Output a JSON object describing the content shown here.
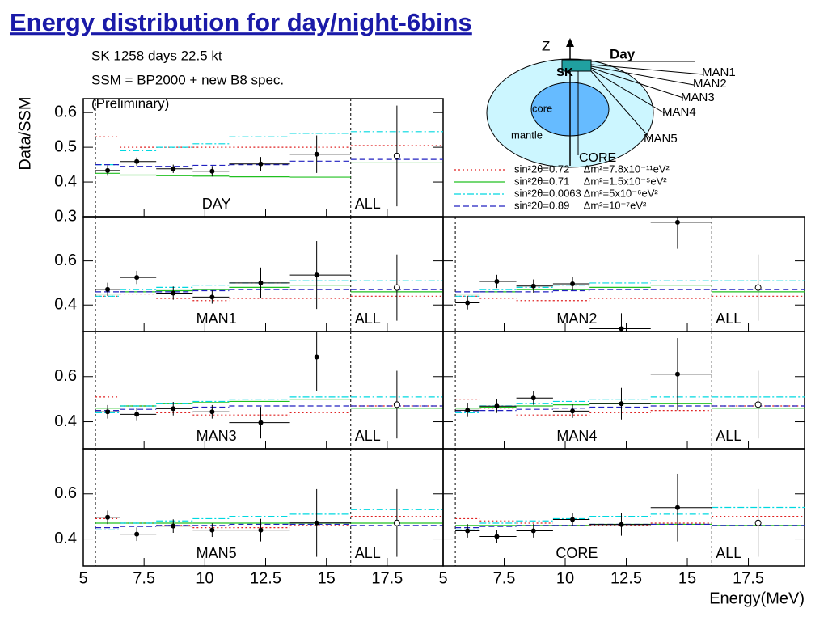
{
  "title": "Energy distribution for day/night-6bins",
  "info": [
    "SK 1258 days  22.5 kt",
    "SSM = BP2000 + new B8 spec.",
    "(Preliminary)"
  ],
  "y_label": "Data/SSM",
  "x_label": "Energy(MeV)",
  "diagram": {
    "z": "Z",
    "day": "Day",
    "sk": "SK",
    "core": "core",
    "mantle": "mantle",
    "core_upper": "CORE",
    "man": [
      "MAN1",
      "MAN2",
      "MAN3",
      "MAN4",
      "MAN5"
    ]
  },
  "chart_data": [
    {
      "type": "errorbar",
      "label": "DAY",
      "all_label": "ALL",
      "xlim": [
        5,
        19.8
      ],
      "xticks": [
        5,
        7.5,
        10,
        12.5,
        15,
        17.5
      ],
      "ylim": [
        0.3,
        0.64
      ],
      "yticks": [
        0.3,
        0.4,
        0.5,
        0.6
      ],
      "bins": [
        5.5,
        6.5,
        8,
        9.5,
        11,
        13.5,
        16
      ],
      "x": [
        6.0,
        7.2,
        8.7,
        10.3,
        12.3,
        14.6
      ],
      "values": [
        0.433,
        0.459,
        0.438,
        0.431,
        0.452,
        0.48
      ],
      "errors": [
        0.015,
        0.012,
        0.012,
        0.015,
        0.02,
        0.054
      ],
      "all_x": 17.9,
      "all_value": 0.475,
      "all_error": 0.145,
      "series": [
        {
          "name": "sin²2θ=0.72     Δm²=7.8x10⁻¹¹eV²",
          "color": "#e02020",
          "style": "dotted",
          "values": [
            0.53,
            0.5,
            0.5,
            0.5,
            0.5,
            0.5
          ],
          "all_value": 0.505
        },
        {
          "name": "sin²2θ=0.71     Δm²=1.5x10⁻⁵eV²",
          "color": "#20c020",
          "style": "solid",
          "values": [
            0.425,
            0.42,
            0.418,
            0.417,
            0.415,
            0.414
          ],
          "all_value": 0.455
        },
        {
          "name": "sin²2θ=0.0063 Δm²=5x10⁻⁶eV²",
          "color": "#00d8e0",
          "style": "dashdot",
          "values": [
            0.45,
            0.49,
            0.5,
            0.51,
            0.53,
            0.54
          ],
          "all_value": 0.545
        },
        {
          "name": "sin²2θ=0.89     Δm²=10⁻⁷eV²",
          "color": "#2020c0",
          "style": "dashed",
          "values": [
            0.45,
            0.445,
            0.445,
            0.448,
            0.45,
            0.46
          ],
          "all_value": 0.465
        }
      ]
    },
    {
      "type": "errorbar",
      "label": "MAN1",
      "all_label": "ALL",
      "xlim": [
        5,
        19.8
      ],
      "xticks": [
        5,
        7.5,
        10,
        12.5,
        15,
        17.5
      ],
      "ylim": [
        0.28,
        0.8
      ],
      "yticks": [
        0.4,
        0.6
      ],
      "bins": [
        5.5,
        6.5,
        8,
        9.5,
        11,
        13.5,
        16
      ],
      "x": [
        6.0,
        7.2,
        8.7,
        10.3,
        12.3,
        14.6
      ],
      "values": [
        0.471,
        0.525,
        0.454,
        0.436,
        0.5,
        0.536
      ],
      "errors": [
        0.03,
        0.03,
        0.03,
        0.03,
        0.07,
        0.154
      ],
      "all_x": 17.9,
      "all_value": 0.479,
      "all_error": 0.15,
      "series": [
        {
          "color": "#e02020",
          "style": "dotted",
          "values": [
            0.44,
            0.45,
            0.43,
            0.42,
            0.43,
            0.43
          ],
          "all_value": 0.44
        },
        {
          "color": "#20c020",
          "style": "solid",
          "values": [
            0.45,
            0.46,
            0.465,
            0.47,
            0.48,
            0.49
          ],
          "all_value": 0.46
        },
        {
          "color": "#00d8e0",
          "style": "dashdot",
          "values": [
            0.44,
            0.47,
            0.48,
            0.49,
            0.5,
            0.51
          ],
          "all_value": 0.51
        },
        {
          "color": "#2020c0",
          "style": "dashed",
          "values": [
            0.46,
            0.46,
            0.46,
            0.465,
            0.47,
            0.47
          ],
          "all_value": 0.47
        }
      ]
    },
    {
      "type": "errorbar",
      "label": "MAN2",
      "all_label": "ALL",
      "xlim": [
        5,
        19.8
      ],
      "xticks": [
        5,
        7.5,
        10,
        12.5,
        15,
        17.5
      ],
      "ylim": [
        0.28,
        0.8
      ],
      "yticks": [
        0.4,
        0.6
      ],
      "bins": [
        5.5,
        6.5,
        8,
        9.5,
        11,
        13.5,
        16
      ],
      "x": [
        6.0,
        7.2,
        8.7,
        10.3,
        12.3,
        14.6
      ],
      "values": [
        0.41,
        0.507,
        0.486,
        0.496,
        0.293,
        0.775
      ],
      "errors": [
        0.03,
        0.03,
        0.03,
        0.03,
        0.07,
        0.12
      ],
      "all_x": 17.9,
      "all_value": 0.479,
      "all_error": 0.15,
      "series": [
        {
          "color": "#e02020",
          "style": "dotted",
          "values": [
            0.44,
            0.43,
            0.42,
            0.42,
            0.43,
            0.43
          ],
          "all_value": 0.44
        },
        {
          "color": "#20c020",
          "style": "solid",
          "values": [
            0.45,
            0.46,
            0.47,
            0.47,
            0.48,
            0.49
          ],
          "all_value": 0.46
        },
        {
          "color": "#00d8e0",
          "style": "dashdot",
          "values": [
            0.44,
            0.47,
            0.48,
            0.49,
            0.5,
            0.51
          ],
          "all_value": 0.51
        },
        {
          "color": "#2020c0",
          "style": "dashed",
          "values": [
            0.46,
            0.46,
            0.46,
            0.465,
            0.47,
            0.47
          ],
          "all_value": 0.47
        }
      ]
    },
    {
      "type": "errorbar",
      "label": "MAN3",
      "all_label": "ALL",
      "xlim": [
        5,
        19.8
      ],
      "xticks": [
        5,
        7.5,
        10,
        12.5,
        15,
        17.5
      ],
      "ylim": [
        0.28,
        0.8
      ],
      "yticks": [
        0.4,
        0.6
      ],
      "bins": [
        5.5,
        6.5,
        8,
        9.5,
        11,
        13.5,
        16
      ],
      "x": [
        6.0,
        7.2,
        8.7,
        10.3,
        12.3,
        14.6
      ],
      "values": [
        0.444,
        0.433,
        0.458,
        0.444,
        0.396,
        0.687
      ],
      "errors": [
        0.03,
        0.03,
        0.03,
        0.03,
        0.07,
        0.15
      ],
      "all_x": 17.9,
      "all_value": 0.476,
      "all_error": 0.15,
      "series": [
        {
          "color": "#e02020",
          "style": "dotted",
          "values": [
            0.51,
            0.47,
            0.44,
            0.43,
            0.43,
            0.44
          ],
          "all_value": 0.47
        },
        {
          "color": "#20c020",
          "style": "solid",
          "values": [
            0.46,
            0.47,
            0.48,
            0.485,
            0.49,
            0.5
          ],
          "all_value": 0.46
        },
        {
          "color": "#00d8e0",
          "style": "dashdot",
          "values": [
            0.44,
            0.47,
            0.48,
            0.49,
            0.5,
            0.51
          ],
          "all_value": 0.51
        },
        {
          "color": "#2020c0",
          "style": "dashed",
          "values": [
            0.45,
            0.455,
            0.46,
            0.465,
            0.47,
            0.47
          ],
          "all_value": 0.47
        }
      ]
    },
    {
      "type": "errorbar",
      "label": "MAN4",
      "all_label": "ALL",
      "xlim": [
        5,
        19.8
      ],
      "xticks": [
        5,
        7.5,
        10,
        12.5,
        15,
        17.5
      ],
      "ylim": [
        0.28,
        0.8
      ],
      "yticks": [
        0.4,
        0.6
      ],
      "bins": [
        5.5,
        6.5,
        8,
        9.5,
        11,
        13.5,
        16
      ],
      "x": [
        6.0,
        7.2,
        8.7,
        10.3,
        12.3,
        14.6
      ],
      "values": [
        0.451,
        0.469,
        0.505,
        0.447,
        0.48,
        0.611
      ],
      "errors": [
        0.03,
        0.03,
        0.03,
        0.03,
        0.07,
        0.16
      ],
      "all_x": 17.9,
      "all_value": 0.476,
      "all_error": 0.15,
      "series": [
        {
          "color": "#e02020",
          "style": "dotted",
          "values": [
            0.5,
            0.46,
            0.43,
            0.43,
            0.44,
            0.45
          ],
          "all_value": 0.47
        },
        {
          "color": "#20c020",
          "style": "solid",
          "values": [
            0.46,
            0.465,
            0.47,
            0.475,
            0.48,
            0.48
          ],
          "all_value": 0.46
        },
        {
          "color": "#00d8e0",
          "style": "dashdot",
          "values": [
            0.44,
            0.47,
            0.48,
            0.49,
            0.5,
            0.51
          ],
          "all_value": 0.51
        },
        {
          "color": "#2020c0",
          "style": "dashed",
          "values": [
            0.445,
            0.45,
            0.455,
            0.46,
            0.465,
            0.47
          ],
          "all_value": 0.47
        }
      ]
    },
    {
      "type": "errorbar",
      "label": "MAN5",
      "all_label": "ALL",
      "xlim": [
        5,
        19.8
      ],
      "xticks": [
        5,
        7.5,
        10,
        12.5,
        15,
        17.5
      ],
      "ylim": [
        0.28,
        0.8
      ],
      "yticks": [
        0.4,
        0.6
      ],
      "bins": [
        5.5,
        6.5,
        8,
        9.5,
        11,
        13.5,
        16
      ],
      "x": [
        6.0,
        7.2,
        8.7,
        10.3,
        12.3,
        14.6
      ],
      "values": [
        0.496,
        0.421,
        0.457,
        0.439,
        0.439,
        0.471
      ],
      "errors": [
        0.03,
        0.03,
        0.03,
        0.03,
        0.05,
        0.15
      ],
      "all_x": 17.9,
      "all_value": 0.471,
      "all_error": 0.15,
      "series": [
        {
          "color": "#e02020",
          "style": "dotted",
          "values": [
            0.49,
            0.47,
            0.46,
            0.45,
            0.45,
            0.46
          ],
          "all_value": 0.5
        },
        {
          "color": "#20c020",
          "style": "solid",
          "values": [
            0.47,
            0.47,
            0.47,
            0.47,
            0.47,
            0.47
          ],
          "all_value": 0.47
        },
        {
          "color": "#00d8e0",
          "style": "dashdot",
          "values": [
            0.44,
            0.47,
            0.48,
            0.49,
            0.5,
            0.51
          ],
          "all_value": 0.53
        },
        {
          "color": "#2020c0",
          "style": "dashed",
          "values": [
            0.45,
            0.455,
            0.46,
            0.46,
            0.465,
            0.465
          ],
          "all_value": 0.46
        }
      ]
    },
    {
      "type": "errorbar",
      "label": "CORE",
      "all_label": "ALL",
      "xlim": [
        5,
        19.8
      ],
      "xticks": [
        5,
        7.5,
        10,
        12.5,
        15,
        17.5
      ],
      "ylim": [
        0.28,
        0.8
      ],
      "yticks": [
        0.4,
        0.6
      ],
      "bins": [
        5.5,
        6.5,
        8,
        9.5,
        11,
        13.5,
        16
      ],
      "x": [
        6.0,
        7.2,
        8.7,
        10.3,
        12.3,
        14.6
      ],
      "values": [
        0.436,
        0.411,
        0.436,
        0.486,
        0.464,
        0.539
      ],
      "errors": [
        0.03,
        0.03,
        0.03,
        0.03,
        0.05,
        0.15
      ],
      "all_x": 17.9,
      "all_value": 0.471,
      "all_error": 0.15,
      "series": [
        {
          "color": "#e02020",
          "style": "dotted",
          "values": [
            0.49,
            0.48,
            0.47,
            0.46,
            0.46,
            0.47
          ],
          "all_value": 0.5
        },
        {
          "color": "#20c020",
          "style": "solid",
          "values": [
            0.46,
            0.46,
            0.46,
            0.46,
            0.465,
            0.465
          ],
          "all_value": 0.46
        },
        {
          "color": "#00d8e0",
          "style": "dashdot",
          "values": [
            0.44,
            0.47,
            0.48,
            0.49,
            0.5,
            0.51
          ],
          "all_value": 0.54
        },
        {
          "color": "#2020c0",
          "style": "dashed",
          "values": [
            0.45,
            0.455,
            0.46,
            0.46,
            0.465,
            0.465
          ],
          "all_value": 0.46
        }
      ]
    }
  ]
}
